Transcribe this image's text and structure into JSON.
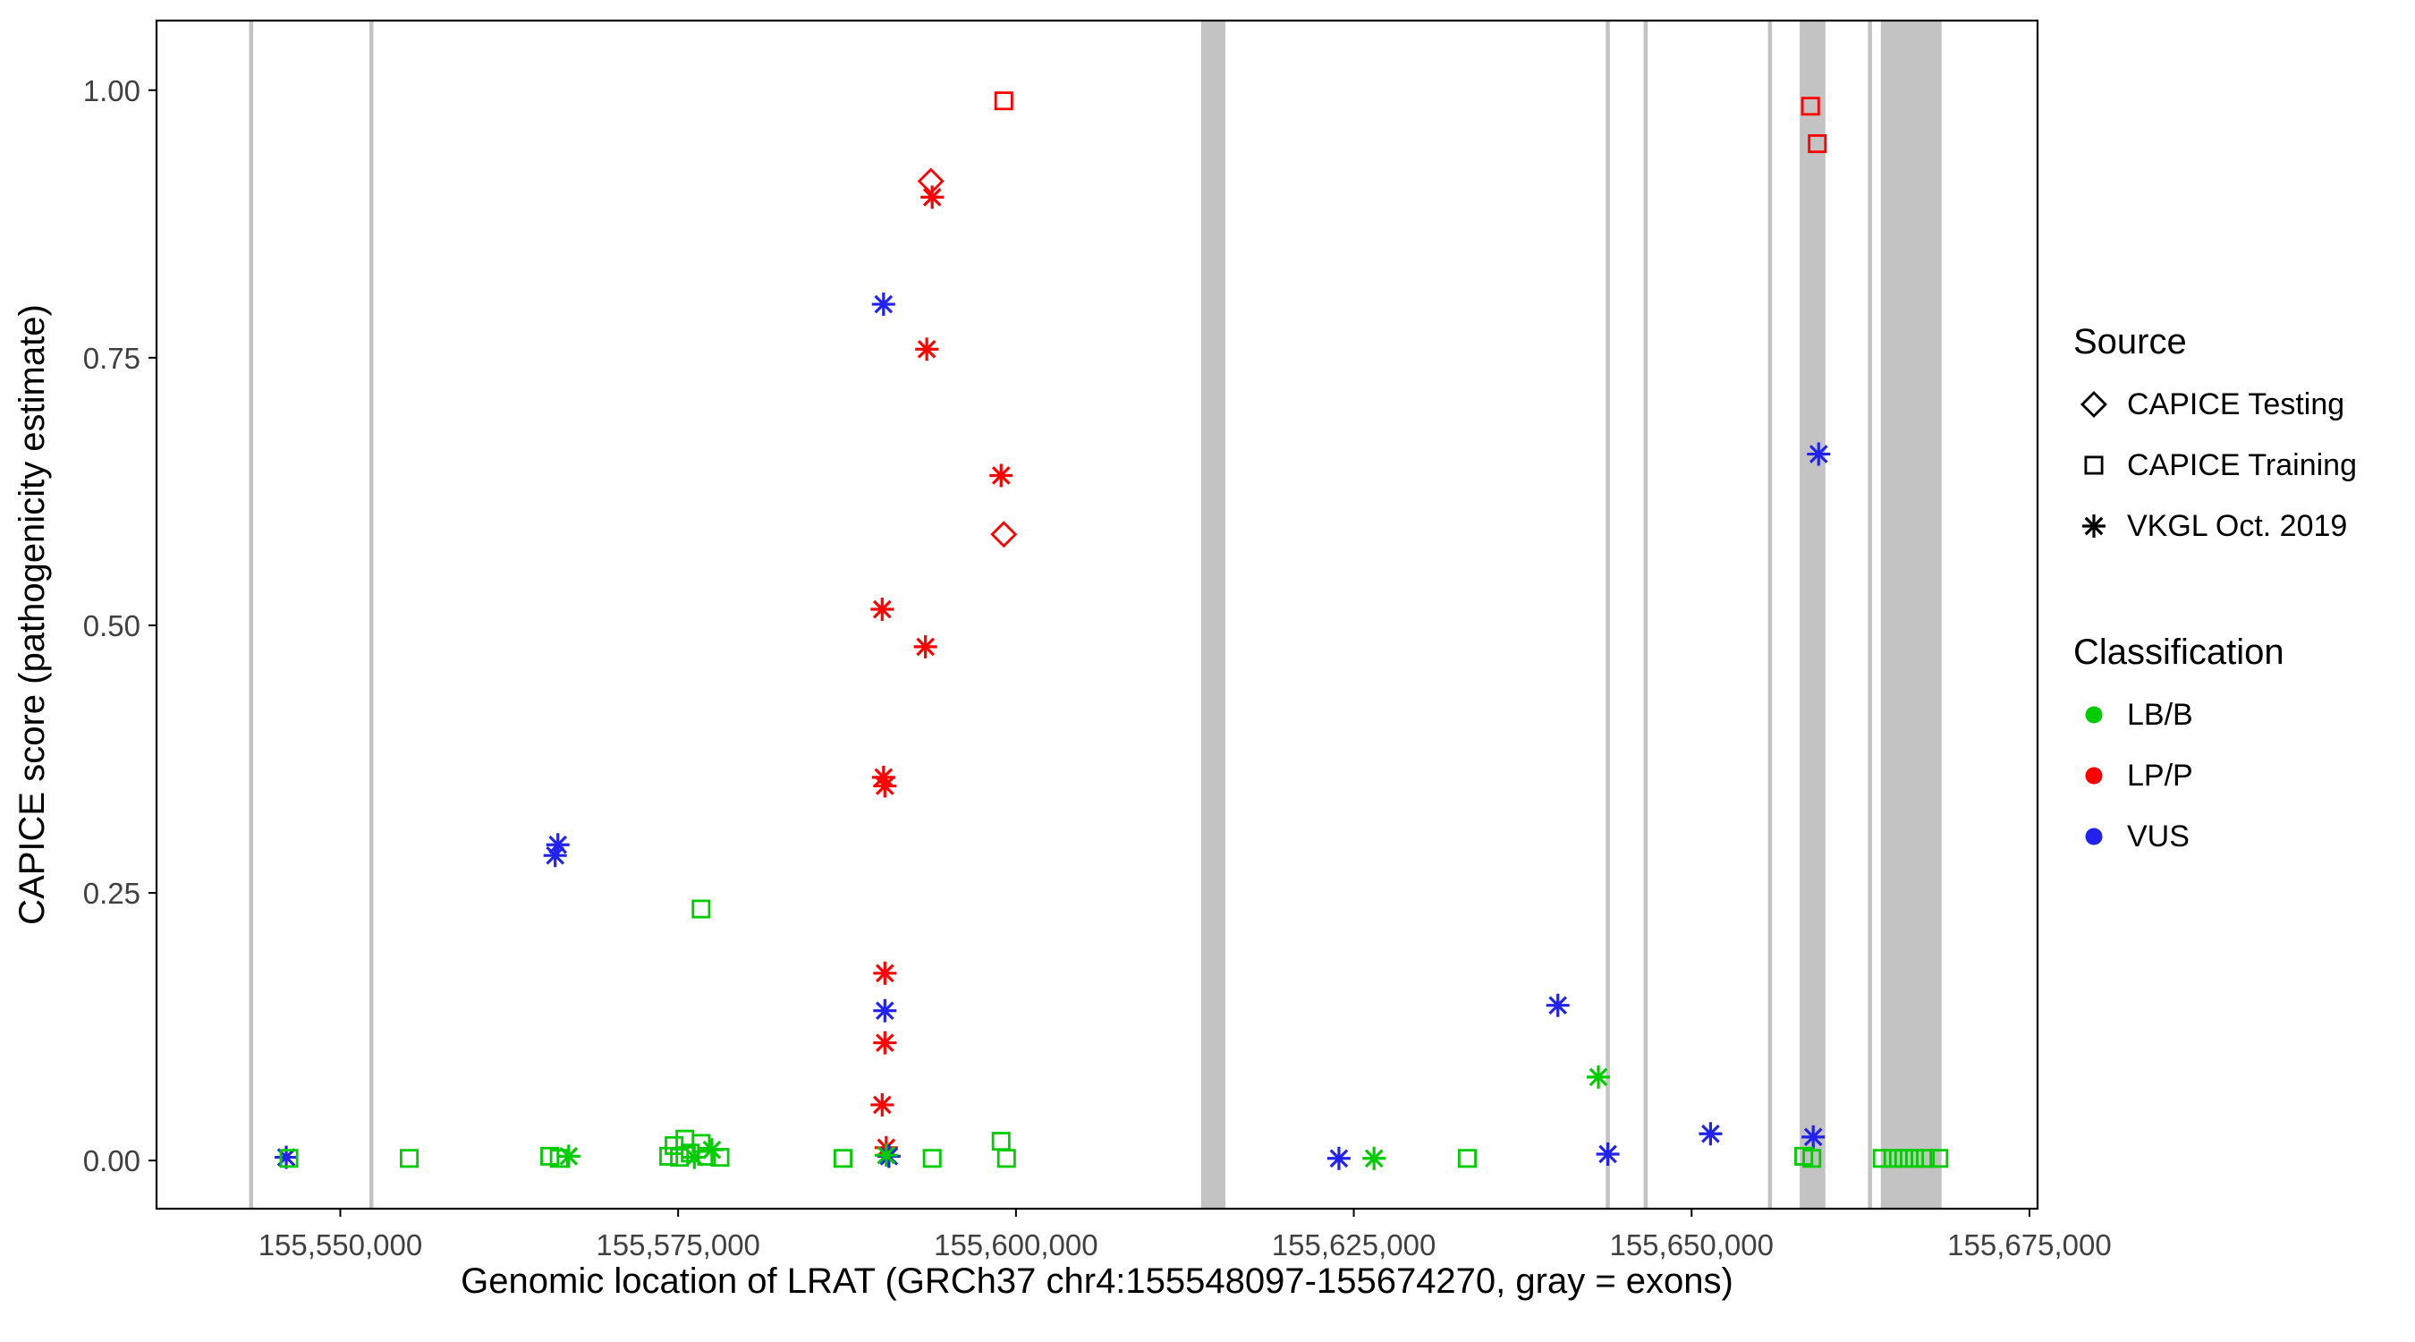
{
  "chart_data": {
    "type": "scatter",
    "title": "",
    "xlabel": "Genomic location of LRAT (GRCh37 chr4:155548097-155674270, gray = exons)",
    "ylabel": "CAPICE score (pathogenicity estimate)",
    "xlim": [
      155536400,
      155675600
    ],
    "ylim": [
      -0.045,
      1.065
    ],
    "grid": false,
    "legend_position": "right",
    "x_ticks": [
      {
        "value": 155550000,
        "label": "155,550,000"
      },
      {
        "value": 155575000,
        "label": "155,575,000"
      },
      {
        "value": 155600000,
        "label": "155,600,000"
      },
      {
        "value": 155625000,
        "label": "155,625,000"
      },
      {
        "value": 155650000,
        "label": "155,650,000"
      },
      {
        "value": 155675000,
        "label": "155,675,000"
      }
    ],
    "y_ticks": [
      {
        "value": 0,
        "label": "0.00"
      },
      {
        "value": 0.25,
        "label": "0.25"
      },
      {
        "value": 0.5,
        "label": "0.50"
      },
      {
        "value": 0.75,
        "label": "0.75"
      },
      {
        "value": 1,
        "label": "1.00"
      }
    ],
    "exon_color": "#C3C3C3",
    "exons": [
      {
        "start": 155543250,
        "end": 155543550
      },
      {
        "start": 155552150,
        "end": 155552450
      },
      {
        "start": 155613700,
        "end": 155615500
      },
      {
        "start": 155643650,
        "end": 155643950
      },
      {
        "start": 155646450,
        "end": 155646750
      },
      {
        "start": 155655650,
        "end": 155655950
      },
      {
        "start": 155658000,
        "end": 155659900
      },
      {
        "start": 155663050,
        "end": 155663350
      },
      {
        "start": 155664000,
        "end": 155668500
      }
    ],
    "classification_colors": {
      "LB/B": "#00CC00",
      "LP/P": "#FF0000",
      "VUS": "#2222EE"
    },
    "source_markers": {
      "CAPICE Testing": "diamond",
      "CAPICE Training": "square",
      "VKGL Oct. 2019": "asterisk"
    },
    "points": [
      {
        "pos": 155599100,
        "score": 0.99,
        "classification": "LP/P",
        "source": "CAPICE Training"
      },
      {
        "pos": 155658800,
        "score": 0.985,
        "classification": "LP/P",
        "source": "CAPICE Training"
      },
      {
        "pos": 155659300,
        "score": 0.95,
        "classification": "LP/P",
        "source": "CAPICE Training"
      },
      {
        "pos": 155593700,
        "score": 0.915,
        "classification": "LP/P",
        "source": "CAPICE Testing"
      },
      {
        "pos": 155599100,
        "score": 0.585,
        "classification": "LP/P",
        "source": "CAPICE Testing"
      },
      {
        "pos": 155593800,
        "score": 0.9,
        "classification": "LP/P",
        "source": "VKGL Oct. 2019"
      },
      {
        "pos": 155593400,
        "score": 0.758,
        "classification": "LP/P",
        "source": "VKGL Oct. 2019"
      },
      {
        "pos": 155598900,
        "score": 0.64,
        "classification": "LP/P",
        "source": "VKGL Oct. 2019"
      },
      {
        "pos": 155590100,
        "score": 0.515,
        "classification": "LP/P",
        "source": "VKGL Oct. 2019"
      },
      {
        "pos": 155593300,
        "score": 0.48,
        "classification": "LP/P",
        "source": "VKGL Oct. 2019"
      },
      {
        "pos": 155590200,
        "score": 0.358,
        "classification": "LP/P",
        "source": "VKGL Oct. 2019"
      },
      {
        "pos": 155590300,
        "score": 0.35,
        "classification": "LP/P",
        "source": "VKGL Oct. 2019"
      },
      {
        "pos": 155590300,
        "score": 0.175,
        "classification": "LP/P",
        "source": "VKGL Oct. 2019"
      },
      {
        "pos": 155590300,
        "score": 0.11,
        "classification": "LP/P",
        "source": "VKGL Oct. 2019"
      },
      {
        "pos": 155590100,
        "score": 0.052,
        "classification": "LP/P",
        "source": "VKGL Oct. 2019"
      },
      {
        "pos": 155590400,
        "score": 0.012,
        "classification": "LP/P",
        "source": "VKGL Oct. 2019"
      },
      {
        "pos": 155566100,
        "score": 0.295,
        "classification": "VUS",
        "source": "VKGL Oct. 2019"
      },
      {
        "pos": 155565900,
        "score": 0.285,
        "classification": "VUS",
        "source": "VKGL Oct. 2019"
      },
      {
        "pos": 155590200,
        "score": 0.8,
        "classification": "VUS",
        "source": "VKGL Oct. 2019"
      },
      {
        "pos": 155590300,
        "score": 0.14,
        "classification": "VUS",
        "source": "VKGL Oct. 2019"
      },
      {
        "pos": 155659400,
        "score": 0.66,
        "classification": "VUS",
        "source": "VKGL Oct. 2019"
      },
      {
        "pos": 155640100,
        "score": 0.145,
        "classification": "VUS",
        "source": "VKGL Oct. 2019"
      },
      {
        "pos": 155651400,
        "score": 0.025,
        "classification": "VUS",
        "source": "VKGL Oct. 2019"
      },
      {
        "pos": 155659000,
        "score": 0.022,
        "classification": "VUS",
        "source": "VKGL Oct. 2019"
      },
      {
        "pos": 155643800,
        "score": 0.006,
        "classification": "VUS",
        "source": "VKGL Oct. 2019"
      },
      {
        "pos": 155623900,
        "score": 0.002,
        "classification": "VUS",
        "source": "VKGL Oct. 2019"
      },
      {
        "pos": 155546000,
        "score": 0.003,
        "classification": "VUS",
        "source": "VKGL Oct. 2019"
      },
      {
        "pos": 155590600,
        "score": 0.004,
        "classification": "VUS",
        "source": "VKGL Oct. 2019"
      },
      {
        "pos": 155576700,
        "score": 0.235,
        "classification": "LB/B",
        "source": "CAPICE Training"
      },
      {
        "pos": 155643100,
        "score": 0.078,
        "classification": "LB/B",
        "source": "VKGL Oct. 2019"
      },
      {
        "pos": 155546200,
        "score": 0.002,
        "classification": "LB/B",
        "source": "CAPICE Training"
      },
      {
        "pos": 155555100,
        "score": 0.002,
        "classification": "LB/B",
        "source": "CAPICE Training"
      },
      {
        "pos": 155565500,
        "score": 0.004,
        "classification": "LB/B",
        "source": "CAPICE Training"
      },
      {
        "pos": 155566200,
        "score": 0.002,
        "classification": "LB/B",
        "source": "CAPICE Training"
      },
      {
        "pos": 155566900,
        "score": 0.004,
        "classification": "LB/B",
        "source": "VKGL Oct. 2019"
      },
      {
        "pos": 155574300,
        "score": 0.004,
        "classification": "LB/B",
        "source": "CAPICE Training"
      },
      {
        "pos": 155574700,
        "score": 0.014,
        "classification": "LB/B",
        "source": "CAPICE Training"
      },
      {
        "pos": 155575100,
        "score": 0.003,
        "classification": "LB/B",
        "source": "CAPICE Training"
      },
      {
        "pos": 155575500,
        "score": 0.02,
        "classification": "LB/B",
        "source": "CAPICE Training"
      },
      {
        "pos": 155575900,
        "score": 0.007,
        "classification": "LB/B",
        "source": "CAPICE Training"
      },
      {
        "pos": 155576200,
        "score": 0.003,
        "classification": "LB/B",
        "source": "VKGL Oct. 2019"
      },
      {
        "pos": 155576700,
        "score": 0.016,
        "classification": "LB/B",
        "source": "CAPICE Training"
      },
      {
        "pos": 155577100,
        "score": 0.004,
        "classification": "LB/B",
        "source": "CAPICE Training"
      },
      {
        "pos": 155577500,
        "score": 0.01,
        "classification": "LB/B",
        "source": "VKGL Oct. 2019"
      },
      {
        "pos": 155578100,
        "score": 0.003,
        "classification": "LB/B",
        "source": "CAPICE Training"
      },
      {
        "pos": 155587200,
        "score": 0.002,
        "classification": "LB/B",
        "source": "CAPICE Training"
      },
      {
        "pos": 155590400,
        "score": 0.005,
        "classification": "LB/B",
        "source": "VKGL Oct. 2019"
      },
      {
        "pos": 155593800,
        "score": 0.002,
        "classification": "LB/B",
        "source": "CAPICE Training"
      },
      {
        "pos": 155598900,
        "score": 0.018,
        "classification": "LB/B",
        "source": "CAPICE Training"
      },
      {
        "pos": 155599300,
        "score": 0.002,
        "classification": "LB/B",
        "source": "CAPICE Training"
      },
      {
        "pos": 155626500,
        "score": 0.002,
        "classification": "LB/B",
        "source": "VKGL Oct. 2019"
      },
      {
        "pos": 155633400,
        "score": 0.002,
        "classification": "LB/B",
        "source": "CAPICE Training"
      },
      {
        "pos": 155658300,
        "score": 0.004,
        "classification": "LB/B",
        "source": "CAPICE Training"
      },
      {
        "pos": 155658900,
        "score": 0.002,
        "classification": "LB/B",
        "source": "CAPICE Training"
      },
      {
        "pos": 155664100,
        "score": 0.002,
        "classification": "LB/B",
        "source": "CAPICE Training"
      },
      {
        "pos": 155664900,
        "score": 0.002,
        "classification": "LB/B",
        "source": "CAPICE Training"
      },
      {
        "pos": 155665700,
        "score": 0.002,
        "classification": "LB/B",
        "source": "CAPICE Training"
      },
      {
        "pos": 155666500,
        "score": 0.002,
        "classification": "LB/B",
        "source": "CAPICE Training"
      },
      {
        "pos": 155667300,
        "score": 0.002,
        "classification": "LB/B",
        "source": "CAPICE Training"
      },
      {
        "pos": 155668300,
        "score": 0.002,
        "classification": "LB/B",
        "source": "CAPICE Training"
      }
    ]
  },
  "legend": {
    "source": {
      "title": "Source",
      "items": [
        {
          "label": "CAPICE Testing",
          "marker": "diamond",
          "color": "#000000"
        },
        {
          "label": "CAPICE Training",
          "marker": "square",
          "color": "#000000"
        },
        {
          "label": "VKGL Oct. 2019",
          "marker": "asterisk",
          "color": "#000000"
        }
      ]
    },
    "classification": {
      "title": "Classification",
      "items": [
        {
          "label": "LB/B",
          "marker": "dot",
          "color": "#00CC00"
        },
        {
          "label": "LP/P",
          "marker": "dot",
          "color": "#FF0000"
        },
        {
          "label": "VUS",
          "marker": "dot",
          "color": "#2222EE"
        }
      ]
    }
  }
}
